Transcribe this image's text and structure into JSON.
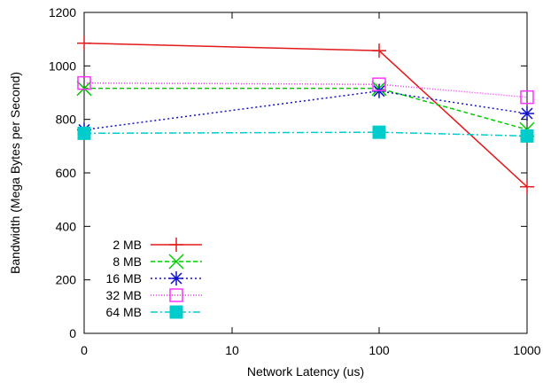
{
  "chart_data": {
    "type": "line",
    "xlabel": "Network Latency (us)",
    "ylabel": "Bandwidth (Mega Bytes per Second)",
    "x": [
      "0",
      "10",
      "100",
      "1000"
    ],
    "yticks": [
      0,
      200,
      400,
      600,
      800,
      1000,
      1200
    ],
    "ylim": [
      0,
      1200
    ],
    "grid": false,
    "legend_position": "bottom-left",
    "series": [
      {
        "name": "2 MB",
        "values": [
          1085,
          1057,
          548
        ],
        "x": [
          "0",
          "100",
          "1000"
        ],
        "color": "#e31a1c",
        "marker": "plus",
        "dash": ""
      },
      {
        "name": "8 MB",
        "values": [
          916,
          916,
          762
        ],
        "x": [
          "0",
          "100",
          "1000"
        ],
        "color": "#00cc00",
        "marker": "cross",
        "dash": "5,3"
      },
      {
        "name": "16 MB",
        "values": [
          761,
          906,
          822
        ],
        "x": [
          "0",
          "100",
          "1000"
        ],
        "color": "#1010c8",
        "marker": "asterisk",
        "dash": "2,3"
      },
      {
        "name": "32 MB",
        "values": [
          936,
          931,
          883
        ],
        "x": [
          "0",
          "100",
          "1000"
        ],
        "color": "#ff33ff",
        "marker": "square-open",
        "dash": "1,2"
      },
      {
        "name": "64 MB",
        "values": [
          748,
          752,
          738
        ],
        "x": [
          "0",
          "100",
          "1000"
        ],
        "color": "#00cccc",
        "marker": "square-filled",
        "dash": "8,3,2,3"
      }
    ]
  }
}
